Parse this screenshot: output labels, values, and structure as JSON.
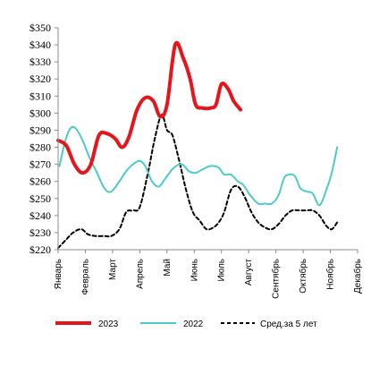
{
  "chart_data": {
    "type": "line",
    "y_ticks": [
      "$220",
      "$230",
      "$240",
      "$250",
      "$260",
      "$270",
      "$280",
      "$290",
      "$300",
      "$310",
      "$320",
      "$330",
      "$340",
      "$350"
    ],
    "ylim": [
      220,
      350
    ],
    "x_ticks": [
      "Январь",
      "Февраль",
      "Март",
      "Апрель",
      "Май",
      "Июнь",
      "Июль",
      "Август",
      "Сентябрь",
      "Октябрь",
      "Ноябрь",
      "Декабрь"
    ],
    "xlim": [
      1,
      12
    ],
    "grid": false,
    "legend_position": "bottom",
    "series": [
      {
        "name": "2023",
        "color": "#e8141b",
        "style": "solid-thick",
        "points": [
          [
            1.0,
            284
          ],
          [
            1.3,
            281
          ],
          [
            1.6,
            270
          ],
          [
            1.9,
            265
          ],
          [
            2.2,
            270
          ],
          [
            2.5,
            287
          ],
          [
            2.8,
            288
          ],
          [
            3.1,
            285
          ],
          [
            3.35,
            280
          ],
          [
            3.6,
            286
          ],
          [
            3.9,
            302
          ],
          [
            4.2,
            309
          ],
          [
            4.5,
            307
          ],
          [
            4.75,
            298
          ],
          [
            5.0,
            305
          ],
          [
            5.3,
            340
          ],
          [
            5.6,
            332
          ],
          [
            5.85,
            320
          ],
          [
            6.05,
            305
          ],
          [
            6.3,
            303
          ],
          [
            6.6,
            303
          ],
          [
            6.8,
            305
          ],
          [
            7.0,
            317
          ],
          [
            7.25,
            314
          ],
          [
            7.45,
            307
          ],
          [
            7.7,
            302
          ]
        ]
      },
      {
        "name": "2022",
        "color": "#4dcbc6",
        "style": "solid",
        "points": [
          [
            1.05,
            269
          ],
          [
            1.25,
            283
          ],
          [
            1.45,
            291
          ],
          [
            1.65,
            291
          ],
          [
            1.9,
            284
          ],
          [
            2.15,
            274
          ],
          [
            2.4,
            266
          ],
          [
            2.7,
            256
          ],
          [
            2.95,
            254
          ],
          [
            3.25,
            260
          ],
          [
            3.5,
            266
          ],
          [
            3.75,
            270
          ],
          [
            4.0,
            272
          ],
          [
            4.2,
            269
          ],
          [
            4.45,
            260
          ],
          [
            4.7,
            257
          ],
          [
            4.95,
            262
          ],
          [
            5.25,
            268
          ],
          [
            5.55,
            270
          ],
          [
            5.8,
            266
          ],
          [
            6.05,
            265
          ],
          [
            6.3,
            267
          ],
          [
            6.6,
            269
          ],
          [
            6.9,
            268
          ],
          [
            7.1,
            264
          ],
          [
            7.35,
            264
          ],
          [
            7.6,
            260
          ],
          [
            7.8,
            258
          ],
          [
            8.05,
            252
          ],
          [
            8.35,
            247
          ],
          [
            8.6,
            247
          ],
          [
            8.85,
            247
          ],
          [
            9.1,
            252
          ],
          [
            9.3,
            262
          ],
          [
            9.5,
            264
          ],
          [
            9.7,
            263
          ],
          [
            9.9,
            256
          ],
          [
            10.15,
            254
          ],
          [
            10.35,
            253
          ],
          [
            10.6,
            246
          ],
          [
            10.85,
            255
          ],
          [
            11.05,
            265
          ],
          [
            11.25,
            280
          ]
        ]
      },
      {
        "name": "Сред.за 5 лет",
        "color": "#000000",
        "style": "dashed",
        "points": [
          [
            1.0,
            221
          ],
          [
            1.3,
            226
          ],
          [
            1.55,
            230
          ],
          [
            1.85,
            232
          ],
          [
            2.1,
            229
          ],
          [
            2.4,
            228
          ],
          [
            2.7,
            228
          ],
          [
            2.95,
            228
          ],
          [
            3.25,
            232
          ],
          [
            3.5,
            242
          ],
          [
            3.75,
            243
          ],
          [
            4.0,
            245
          ],
          [
            4.3,
            265
          ],
          [
            4.55,
            285
          ],
          [
            4.8,
            299
          ],
          [
            5.0,
            290
          ],
          [
            5.2,
            287
          ],
          [
            5.45,
            272
          ],
          [
            5.7,
            255
          ],
          [
            5.95,
            242
          ],
          [
            6.2,
            237
          ],
          [
            6.45,
            232
          ],
          [
            6.7,
            233
          ],
          [
            6.9,
            236
          ],
          [
            7.1,
            242
          ],
          [
            7.35,
            255
          ],
          [
            7.6,
            257
          ],
          [
            7.85,
            251
          ],
          [
            8.1,
            242
          ],
          [
            8.35,
            236
          ],
          [
            8.6,
            233
          ],
          [
            8.85,
            232
          ],
          [
            9.1,
            235
          ],
          [
            9.35,
            240
          ],
          [
            9.6,
            243
          ],
          [
            9.85,
            243
          ],
          [
            10.1,
            243
          ],
          [
            10.35,
            243
          ],
          [
            10.6,
            240
          ],
          [
            10.85,
            234
          ],
          [
            11.05,
            232
          ],
          [
            11.25,
            236
          ]
        ]
      }
    ]
  }
}
